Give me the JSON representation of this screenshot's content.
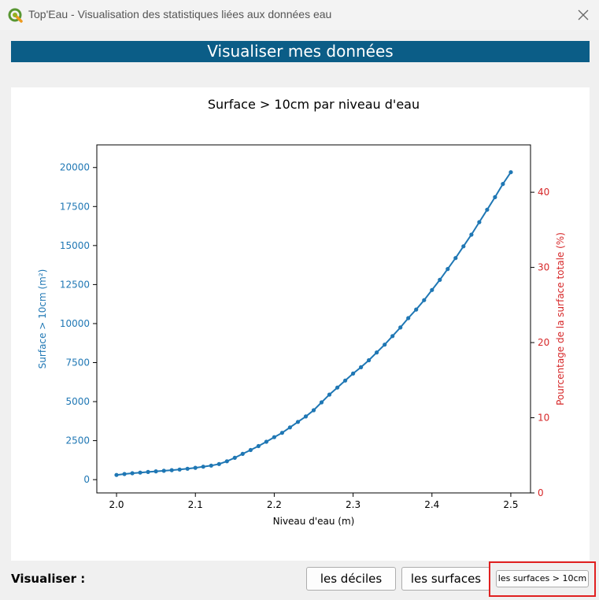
{
  "window": {
    "title": "Top'Eau - Visualisation des statistiques liées aux données eau",
    "app_icon": "qgis-icon",
    "close_icon": "close-icon"
  },
  "banner": {
    "title": "Visualiser mes données"
  },
  "footer": {
    "label": "Visualiser :",
    "buttons": {
      "deciles": "les déciles",
      "surfaces": "les surfaces",
      "surfaces_10cm": "les surfaces > 10cm"
    },
    "highlighted": "surfaces_10cm"
  },
  "colors": {
    "banner_bg": "#0b5d87",
    "series": "#1f77b4",
    "right_axis": "#d62728",
    "highlight": "#e02020"
  },
  "chart_data": {
    "type": "line",
    "title": "Surface > 10cm par niveau d'eau",
    "xlabel": "Niveau d'eau (m)",
    "ylabel": "Surface > 10cm (m²)",
    "y2label": "Pourcentage de la surface totale (%)",
    "xlim": [
      1.975,
      2.525
    ],
    "ylim": [
      -850,
      21450
    ],
    "y2lim": [
      0,
      46.3
    ],
    "xticks": [
      2.0,
      2.1,
      2.2,
      2.3,
      2.4,
      2.5
    ],
    "xtick_labels": [
      "2.0",
      "2.1",
      "2.2",
      "2.3",
      "2.4",
      "2.5"
    ],
    "yticks": [
      0,
      2500,
      5000,
      7500,
      10000,
      12500,
      15000,
      17500,
      20000
    ],
    "ytick_labels": [
      "0",
      "2500",
      "5000",
      "7500",
      "10000",
      "12500",
      "15000",
      "17500",
      "20000"
    ],
    "y2ticks": [
      0,
      10,
      20,
      30,
      40
    ],
    "y2tick_labels": [
      "0",
      "10",
      "20",
      "30",
      "40"
    ],
    "grid": false,
    "marker": "circle",
    "series": [
      {
        "x": [
          2.0,
          2.01,
          2.02,
          2.03,
          2.04,
          2.05,
          2.06,
          2.07,
          2.08,
          2.09,
          2.1,
          2.11,
          2.12,
          2.13,
          2.14,
          2.15,
          2.16,
          2.17,
          2.18,
          2.19,
          2.2,
          2.21,
          2.22,
          2.23,
          2.24,
          2.25,
          2.26,
          2.27,
          2.28,
          2.29,
          2.3,
          2.31,
          2.32,
          2.33,
          2.34,
          2.35,
          2.36,
          2.37,
          2.38,
          2.39,
          2.4,
          2.41,
          2.42,
          2.43,
          2.44,
          2.45,
          2.46,
          2.47,
          2.48,
          2.49,
          2.5
        ],
        "values": [
          300,
          360,
          410,
          450,
          490,
          530,
          570,
          610,
          650,
          700,
          760,
          830,
          900,
          1000,
          1180,
          1400,
          1650,
          1900,
          2150,
          2430,
          2720,
          3000,
          3350,
          3700,
          4050,
          4450,
          4950,
          5450,
          5900,
          6350,
          6800,
          7200,
          7650,
          8150,
          8650,
          9200,
          9750,
          10350,
          10900,
          11500,
          12150,
          12800,
          13500,
          14200,
          14950,
          15700,
          16500,
          17300,
          18100,
          18950,
          19700
        ]
      }
    ]
  }
}
